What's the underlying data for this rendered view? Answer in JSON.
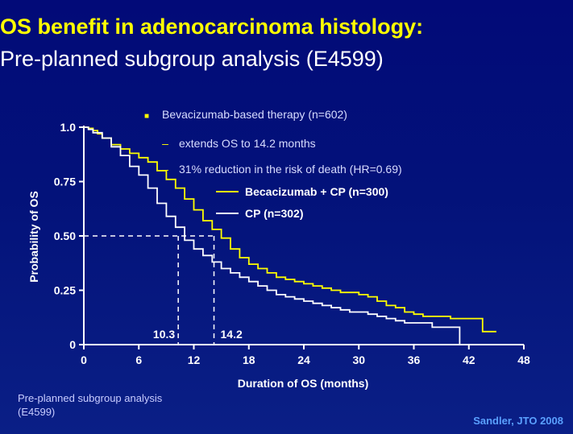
{
  "slide": {
    "title_line1": "OS benefit in adenocarcinoma histology:",
    "title_line2": "Pre-planned subgroup analysis (E4599)",
    "footnote": "Pre-planned subgroup analysis (E4599)",
    "source": "Sandler, JTO 2008"
  },
  "chart_data": {
    "type": "line",
    "xlabel": "Duration of OS (months)",
    "ylabel": "Probability of OS",
    "xlim": [
      0,
      48
    ],
    "ylim": [
      0,
      1.0
    ],
    "x_ticks": [
      0,
      6,
      12,
      18,
      24,
      30,
      36,
      42,
      48
    ],
    "y_ticks": [
      0,
      0.25,
      0.5,
      0.75,
      1.0
    ],
    "y_tick_labels": [
      "0",
      "0.25",
      "0.50",
      "0.75",
      "1.0"
    ],
    "grid": false,
    "bullets": [
      {
        "marker": "■",
        "text": "Bevacizumab-based therapy (n=602)"
      },
      {
        "marker": "–",
        "text": "extends OS to 14.2 months"
      },
      {
        "marker": "–",
        "text": "31% reduction in the risk of death (HR=0.69)"
      }
    ],
    "colors": {
      "bev": "#ffff00",
      "cp": "#ffffff",
      "bullet": "#ffff00"
    },
    "median_line": {
      "y": 0.5,
      "points": [
        {
          "x": 10.3,
          "label": "10.3"
        },
        {
          "x": 14.2,
          "label": "14.2"
        }
      ]
    },
    "series": [
      {
        "name": "Becacizumab + CP (n=300)",
        "color": "#ffff00",
        "x": [
          0,
          0.5,
          1,
          1.5,
          2,
          3,
          4,
          5,
          6,
          7,
          8,
          9,
          10,
          11,
          12,
          13,
          14,
          15,
          16,
          17,
          18,
          19,
          20,
          21,
          22,
          23,
          24,
          25,
          26,
          27,
          28,
          29,
          30,
          31,
          32,
          33,
          34,
          35,
          36,
          37,
          38,
          39,
          40,
          41,
          42,
          43,
          43.5,
          45
        ],
        "y": [
          1.0,
          0.995,
          0.985,
          0.97,
          0.95,
          0.92,
          0.9,
          0.88,
          0.86,
          0.84,
          0.8,
          0.76,
          0.72,
          0.67,
          0.62,
          0.57,
          0.53,
          0.49,
          0.44,
          0.4,
          0.37,
          0.35,
          0.33,
          0.31,
          0.3,
          0.29,
          0.28,
          0.27,
          0.26,
          0.25,
          0.24,
          0.24,
          0.23,
          0.22,
          0.2,
          0.18,
          0.17,
          0.15,
          0.14,
          0.13,
          0.13,
          0.13,
          0.12,
          0.12,
          0.12,
          0.12,
          0.06,
          0.06
        ]
      },
      {
        "name": "CP (n=302)",
        "color": "#ffffff",
        "x": [
          0,
          0.5,
          1,
          2,
          3,
          4,
          5,
          6,
          7,
          8,
          9,
          10,
          11,
          12,
          13,
          14,
          15,
          16,
          17,
          18,
          19,
          20,
          21,
          22,
          23,
          24,
          25,
          26,
          27,
          28,
          29,
          30,
          31,
          32,
          33,
          34,
          35,
          36,
          37,
          38,
          39,
          40,
          40.8,
          41
        ],
        "y": [
          1.0,
          0.99,
          0.975,
          0.95,
          0.91,
          0.87,
          0.82,
          0.78,
          0.72,
          0.65,
          0.59,
          0.54,
          0.48,
          0.44,
          0.41,
          0.38,
          0.35,
          0.33,
          0.31,
          0.29,
          0.27,
          0.25,
          0.23,
          0.22,
          0.21,
          0.2,
          0.19,
          0.18,
          0.17,
          0.16,
          0.15,
          0.15,
          0.14,
          0.13,
          0.12,
          0.11,
          0.1,
          0.1,
          0.1,
          0.08,
          0.08,
          0.08,
          0.08,
          0.0
        ]
      }
    ]
  }
}
